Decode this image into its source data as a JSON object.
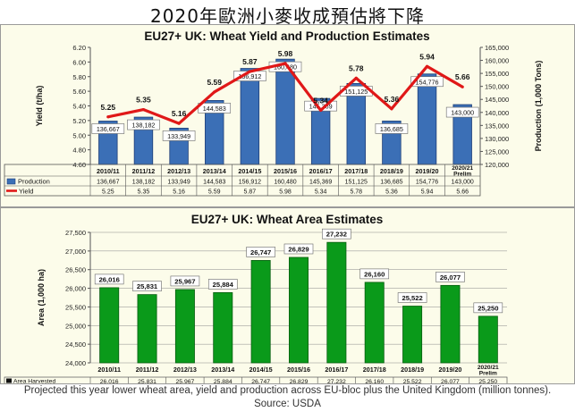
{
  "page": {
    "title": "2020年歐洲小麥收成預估將下降",
    "caption": "Projected this year lower wheat area, yield and production across EU-bloc plus the United Kingdom (million tonnes). Source: USDA"
  },
  "colors": {
    "panel_bg": "#fcfcea",
    "bar_blue": "#3b6fb6",
    "bar_blue_dark": "#1f3f78",
    "line_red": "#e01818",
    "bar_green": "#0a9a1a",
    "bar_green_dark": "#075e10"
  },
  "chart_data": [
    {
      "type": "bar",
      "title": "EU27+ UK: Wheat Yield and Production Estimates",
      "categories": [
        "2010/11",
        "2011/12",
        "2012/13",
        "2013/14",
        "2014/15",
        "2015/16",
        "2016/17",
        "2017/18",
        "2018/19",
        "2019/20",
        "2020/21 Prelim"
      ],
      "series": [
        {
          "name": "Production",
          "type": "bar",
          "axis": "right",
          "values": [
            136667,
            138182,
            133949,
            144583,
            156912,
            160480,
            145369,
            151125,
            136685,
            154776,
            143000
          ],
          "labels": [
            "136,667",
            "138,182",
            "133,949",
            "144,583",
            "156,912",
            "160,480",
            "145,369",
            "151,125",
            "136,685",
            "154,776",
            "143,000"
          ]
        },
        {
          "name": "Yield",
          "type": "line",
          "axis": "left",
          "values": [
            5.25,
            5.35,
            5.16,
            5.59,
            5.87,
            5.98,
            5.34,
            5.78,
            5.36,
            5.94,
            5.66
          ],
          "labels": [
            "5.25",
            "5.35",
            "5.16",
            "5.59",
            "5.87",
            "5.98",
            "5.34",
            "5.78",
            "5.36",
            "5.94",
            "5.66"
          ]
        }
      ],
      "ylabel": "Yield (t/ha)",
      "ylim": [
        4.6,
        6.2
      ],
      "yticks": [
        "4.60",
        "4.80",
        "5.00",
        "5.20",
        "5.40",
        "5.60",
        "5.80",
        "6.00",
        "6.20"
      ],
      "y2label": "Production (1,000 Tons)",
      "y2lim": [
        120000,
        165000
      ],
      "y2ticks": [
        "120,000",
        "125,000",
        "130,000",
        "135,000",
        "140,000",
        "145,000",
        "150,000",
        "155,000",
        "160,000",
        "165,000"
      ],
      "table": true,
      "grid": false
    },
    {
      "type": "bar",
      "title": "EU27+ UK: Wheat Area Estimates",
      "categories": [
        "2010/11",
        "2011/12",
        "2012/13",
        "2013/14",
        "2014/15",
        "2015/16",
        "2016/17",
        "2017/18",
        "2018/19",
        "2019/20",
        "2020/21 Prelim"
      ],
      "series": [
        {
          "name": "Area Harvested",
          "values": [
            26016,
            25831,
            25967,
            25884,
            26747,
            26829,
            27232,
            26160,
            25522,
            26077,
            25250
          ],
          "labels": [
            "26,016",
            "25,831",
            "25,967",
            "25,884",
            "26,747",
            "26,829",
            "27,232",
            "26,160",
            "25,522",
            "26,077",
            "25,250"
          ]
        }
      ],
      "ylabel": "Area (1,000 ha)",
      "ylim": [
        24000,
        27500
      ],
      "yticks": [
        "24,000",
        "24,500",
        "25,000",
        "25,500",
        "26,000",
        "26,500",
        "27,000",
        "27,500"
      ],
      "table": true,
      "grid": true
    }
  ]
}
